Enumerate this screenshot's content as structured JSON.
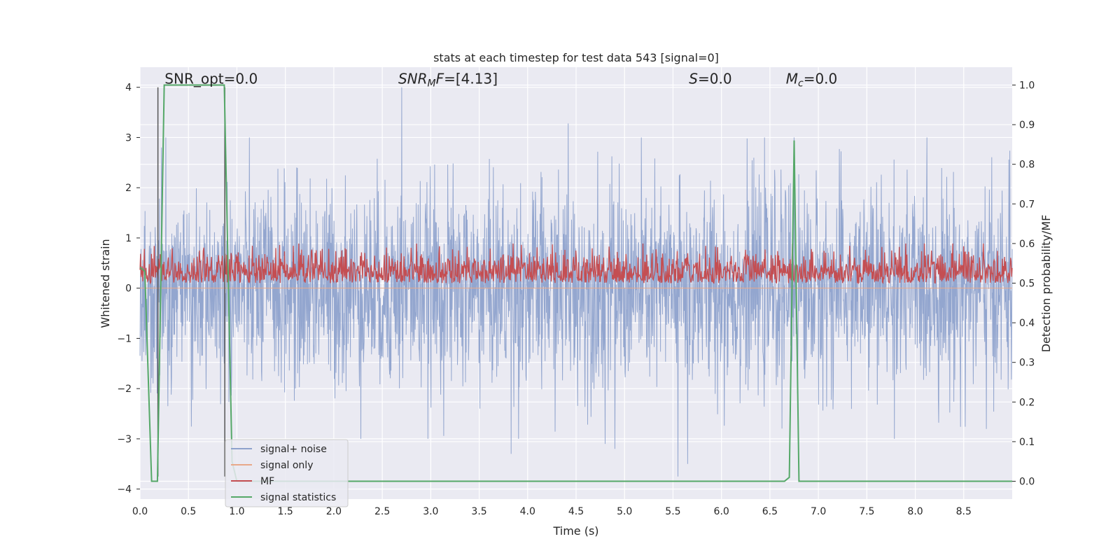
{
  "chart_data": {
    "type": "line",
    "title": "stats at each timestep for test data 543 [signal=0]",
    "xlabel": "Time (s)",
    "ylabel": "Whitened strain",
    "y2label": "Detection probability/MF",
    "xlim": [
      0.0,
      9.0
    ],
    "ylim": [
      -4.2,
      4.4
    ],
    "y2lim": [
      -0.045,
      1.045
    ],
    "xticks": [
      0.0,
      0.5,
      1.0,
      1.5,
      2.0,
      2.5,
      3.0,
      3.5,
      4.0,
      4.5,
      5.0,
      5.5,
      6.0,
      6.5,
      7.0,
      7.5,
      8.0,
      8.5
    ],
    "yticks": [
      -4,
      -3,
      -2,
      -1,
      0,
      1,
      2,
      3,
      4
    ],
    "y2ticks": [
      0.0,
      0.1,
      0.2,
      0.3,
      0.4,
      0.5,
      0.6,
      0.7,
      0.8,
      0.9,
      1.0
    ],
    "xtick_labels": [
      "0.0",
      "0.5",
      "1.0",
      "1.5",
      "2.0",
      "2.5",
      "3.0",
      "3.5",
      "4.0",
      "4.5",
      "5.0",
      "5.5",
      "6.0",
      "6.5",
      "7.0",
      "7.5",
      "8.0",
      "8.5"
    ],
    "ytick_labels": [
      "−4",
      "−3",
      "−2",
      "−1",
      "0",
      "1",
      "2",
      "3",
      "4"
    ],
    "y2tick_labels": [
      "0.0",
      "0.1",
      "0.2",
      "0.3",
      "0.4",
      "0.5",
      "0.6",
      "0.7",
      "0.8",
      "0.9",
      "1.0"
    ],
    "grid": true,
    "legend_placement": "lower-left",
    "annotations": [
      {
        "text": "SNR_opt=0.0",
        "x": 0.19,
        "y": 4.1
      },
      {
        "text": "SNR_MF=[4.13]",
        "x": 2.6,
        "y": 4.1
      },
      {
        "text": "S=0.0",
        "x": 5.6,
        "y": 4.1
      },
      {
        "text": "M_c=0.0",
        "x": 6.6,
        "y": 4.1
      }
    ],
    "vlines": [
      {
        "x": 0.185,
        "y0": -3.75,
        "y1": 4.0,
        "color": "#555555"
      },
      {
        "x": 0.875,
        "y0": -3.75,
        "y1": 4.0,
        "color": "#555555"
      }
    ],
    "series": [
      {
        "name": "signal+ noise",
        "color": "#8ea2cc",
        "axis": "left",
        "kind": "noise",
        "amplitude": 1.0,
        "peaks": [
          [
            2.7,
            4.0
          ],
          [
            4.42,
            3.28
          ],
          [
            6.75,
            3.0
          ],
          [
            0.22,
            2.8
          ],
          [
            5.55,
            -3.75
          ],
          [
            5.65,
            -3.5
          ],
          [
            3.83,
            -3.3
          ],
          [
            4.8,
            -3.1
          ],
          [
            4.9,
            -3.2
          ]
        ]
      },
      {
        "name": "signal only",
        "color": "#e8a889",
        "axis": "left",
        "kind": "flat",
        "value": 0.0
      },
      {
        "name": "MF",
        "color": "#c44e52",
        "axis": "right",
        "kind": "noise-positive",
        "level": 0.55,
        "amplitude": 0.03
      },
      {
        "name": "signal statistics",
        "color": "#55a868",
        "axis": "right",
        "x": [
          0.0,
          0.05,
          0.12,
          0.18,
          0.25,
          0.87,
          0.95,
          1.0,
          1.05,
          6.65,
          6.7,
          6.75,
          6.8,
          9.0
        ],
        "values": [
          0.54,
          0.53,
          0.0,
          0.0,
          1.0,
          1.0,
          0.05,
          0.0,
          0.0,
          0.0,
          0.01,
          0.86,
          0.0,
          0.0
        ]
      }
    ]
  }
}
